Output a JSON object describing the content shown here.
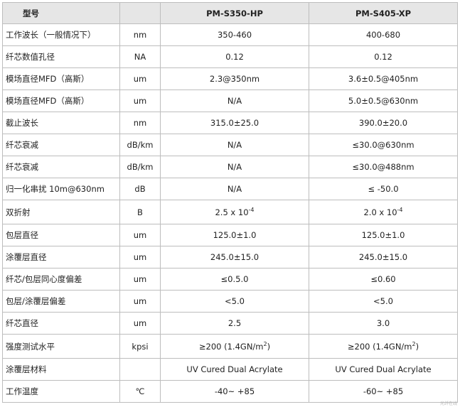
{
  "header": {
    "param": "型号",
    "unit": "",
    "model_1": "PM-S350-HP",
    "model_2": "PM-S405-XP"
  },
  "rows": [
    {
      "param": "工作波长（一般情况下）",
      "unit": "nm",
      "v1": "350-460",
      "v2": "400-680"
    },
    {
      "param": "纤芯数值孔径",
      "unit": "NA",
      "v1": "0.12",
      "v2": "0.12"
    },
    {
      "param": "模场直径MFD（高斯）",
      "unit": "um",
      "v1": "2.3@350nm",
      "v2": "3.6±0.5@405nm"
    },
    {
      "param": "模场直径MFD（高斯）",
      "unit": "um",
      "v1": "N/A",
      "v2": "5.0±0.5@630nm"
    },
    {
      "param": "截止波长",
      "unit": "nm",
      "v1": "315.0±25.0",
      "v2": "390.0±20.0"
    },
    {
      "param": "纤芯衰减",
      "unit": "dB/km",
      "v1": "N/A",
      "v2": "≤30.0@630nm"
    },
    {
      "param": "纤芯衰减",
      "unit": "dB/km",
      "v1": "N/A",
      "v2": "≤30.0@488nm"
    },
    {
      "param": "归一化串扰 10m@630nm",
      "unit": "dB",
      "v1": "N/A",
      "v2": "≤ -50.0"
    },
    {
      "param": "双折射",
      "unit": "B",
      "v1": "2.5 x 10",
      "v1_sup": "-4",
      "v2": "2.0 x 10",
      "v2_sup": "-4"
    },
    {
      "param": "包层直径",
      "unit": "um",
      "v1": "125.0±1.0",
      "v2": "125.0±1.0"
    },
    {
      "param": "涂覆层直径",
      "unit": "um",
      "v1": "245.0±15.0",
      "v2": "245.0±15.0"
    },
    {
      "param": "纤芯/包层同心度偏差",
      "unit": "um",
      "v1": "≤0.5.0",
      "v2": "≤0.60"
    },
    {
      "param": "包层/涂覆层偏差",
      "unit": "um",
      "v1": "<5.0",
      "v2": "<5.0"
    },
    {
      "param": "纤芯直径",
      "unit": "um",
      "v1": "2.5",
      "v2": "3.0"
    },
    {
      "param": "强度测试水平",
      "unit": "kpsi",
      "v1": "≥200 (1.4GN/m",
      "v1_sup": "2",
      "v1_end": ")",
      "v2": "≥200 (1.4GN/m",
      "v2_sup": "2",
      "v2_end": ")"
    },
    {
      "param": "涂覆层材料",
      "unit": "",
      "v1": "UV Cured Dual Acrylate",
      "v2": "UV Cured Dual Acrylate"
    },
    {
      "param": "工作温度",
      "unit": "℃",
      "v1": "-40~ +85",
      "v2": "-60~ +85"
    }
  ],
  "watermark": "光纤在线"
}
